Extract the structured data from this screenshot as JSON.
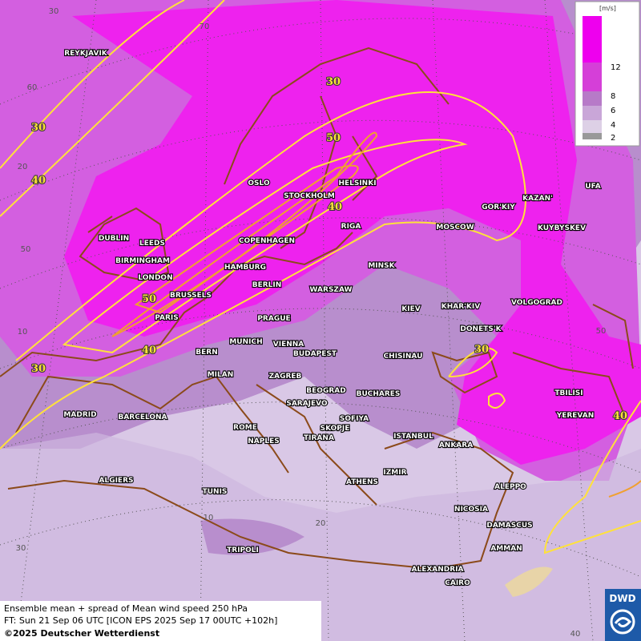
{
  "legend": {
    "unit": "[m/s]",
    "labels": [
      12,
      8,
      6,
      4,
      2
    ]
  },
  "cities": [
    "REYKJAVIK",
    "OSLO",
    "STOCKHOLM",
    "HELSINKI",
    "DUBLIN",
    "LEEDS",
    "BIRMINGHAM",
    "LONDON",
    "COPENHAGEN",
    "HAMBURG",
    "BERLIN",
    "RIGA",
    "MOSCOW",
    "GOR'KIY",
    "KAZAN'",
    "UFA",
    "KUYBYSKEV",
    "MINSK",
    "WARSZAW",
    "KIEV",
    "KHAR'KIV",
    "VOLGOGRAD",
    "DONETS'K",
    "BRUSSELS",
    "PARIS",
    "PRAGUE",
    "MUNICH",
    "VIENNA",
    "BERN",
    "BUDAPEST",
    "CHISINAU",
    "MILAN",
    "ZAGREB",
    "BEOGRAD",
    "BUCHARES",
    "TBILISI",
    "YEREVAN",
    "MADRID",
    "BARCELONA",
    "SARAJEVO",
    "SOFIYA",
    "SKOPJE",
    "ROME",
    "NAPLES",
    "TIRANA",
    "ISTANBUL",
    "ANKARA",
    "ALGIERS",
    "TUNIS",
    "ATHENS",
    "IZMIR",
    "ALEPPO",
    "NICOSIA",
    "DAMASCUS",
    "AMMAN",
    "TRIPOLI",
    "ALEXANDRIA",
    "CAIRO"
  ],
  "contour_labels": [
    30,
    50,
    40,
    30,
    40,
    50,
    40,
    30,
    30,
    40
  ],
  "grid_labels": [
    30,
    70,
    60,
    20,
    50,
    10,
    50,
    10,
    20,
    30,
    40
  ],
  "footer": {
    "line1": "Ensemble mean + spread of Mean wind speed 250 hPa",
    "line2": "FT: Sun 21 Sep 06 UTC [ICON EPS 2025 Sep 17 00UTC +102h]",
    "line3": "©2025 Deutscher Wetterdienst"
  },
  "logo": "DWD"
}
